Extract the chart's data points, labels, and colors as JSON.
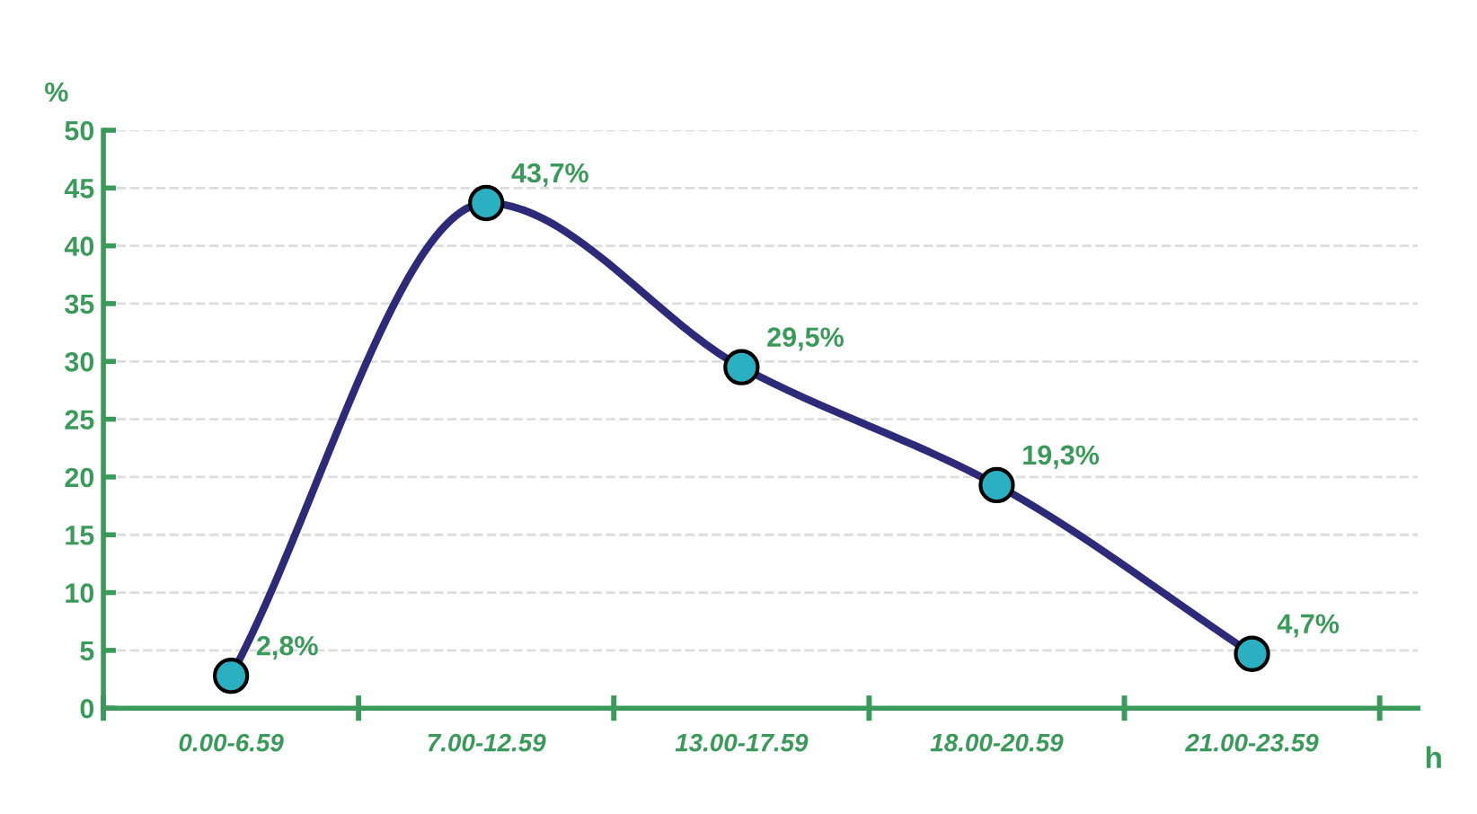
{
  "chart_data": {
    "type": "line",
    "ylabel": "%",
    "xlabel": "h",
    "categories": [
      "0.00-6.59",
      "7.00-12.59",
      "13.00-17.59",
      "18.00-20.59",
      "21.00-23.59"
    ],
    "series": [
      {
        "color": "#2e2a7a",
        "values": [
          2.8,
          43.7,
          29.5,
          19.3,
          4.7
        ],
        "value_labels": [
          "2,8%",
          "43,7%",
          "29,5%",
          "19,3%",
          "4,7%"
        ]
      }
    ],
    "ylim": [
      0,
      50
    ],
    "yticks": [
      0,
      5,
      10,
      15,
      20,
      25,
      30,
      35,
      40,
      45,
      50
    ],
    "grid": "y",
    "marker": "circle",
    "line_style": "solid"
  }
}
